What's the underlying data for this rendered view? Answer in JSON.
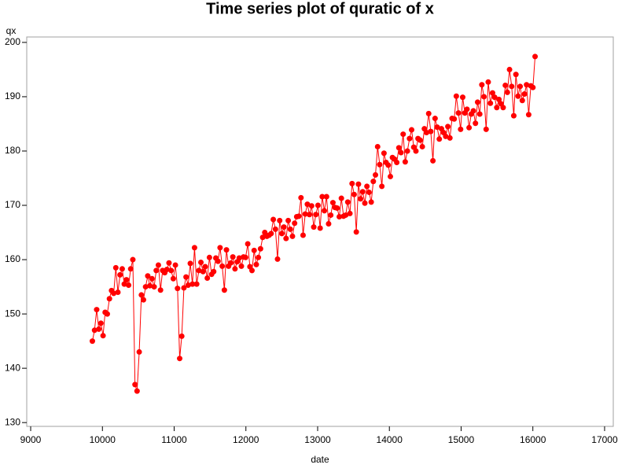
{
  "chart_data": {
    "type": "line",
    "title": "Time series plot of quratic of x",
    "x_label": "date",
    "y_label": "qx",
    "x": [
      9860,
      9890,
      9920,
      9949,
      9979,
      10009,
      10038,
      10068,
      10098,
      10127,
      10157,
      10187,
      10216,
      10246,
      10276,
      10305,
      10335,
      10365,
      10394,
      10424,
      10454,
      10483,
      10513,
      10543,
      10572,
      10602,
      10632,
      10661,
      10691,
      10721,
      10750,
      10780,
      10810,
      10839,
      10869,
      10899,
      10928,
      10958,
      10988,
      11017,
      11047,
      11077,
      11106,
      11136,
      11166,
      11195,
      11225,
      11255,
      11284,
      11314,
      11344,
      11373,
      11403,
      11433,
      11462,
      11492,
      11522,
      11551,
      11581,
      11611,
      11640,
      11670,
      11700,
      11729,
      11759,
      11789,
      11818,
      11848,
      11878,
      11907,
      11937,
      11967,
      11996,
      12026,
      12056,
      12085,
      12115,
      12145,
      12174,
      12204,
      12234,
      12263,
      12293,
      12323,
      12352,
      12382,
      12412,
      12441,
      12471,
      12501,
      12530,
      12560,
      12590,
      12619,
      12649,
      12679,
      12708,
      12738,
      12768,
      12797,
      12827,
      12857,
      12886,
      12916,
      12946,
      12975,
      13005,
      13035,
      13064,
      13094,
      13124,
      13153,
      13183,
      13213,
      13242,
      13272,
      13302,
      13331,
      13361,
      13391,
      13420,
      13450,
      13480,
      13509,
      13539,
      13569,
      13598,
      13628,
      13658,
      13687,
      13717,
      13747,
      13776,
      13806,
      13836,
      13865,
      13895,
      13925,
      13954,
      13984,
      14014,
      14043,
      14073,
      14103,
      14132,
      14162,
      14192,
      14221,
      14251,
      14281,
      14310,
      14340,
      14370,
      14399,
      14429,
      14459,
      14488,
      14518,
      14548,
      14577,
      14607,
      14637,
      14666,
      14696,
      14726,
      14755,
      14785,
      14815,
      14844,
      14874,
      14904,
      14933,
      14963,
      14993,
      15022,
      15052,
      15082,
      15111,
      15141,
      15171,
      15200,
      15230,
      15260,
      15289,
      15319,
      15349,
      15378,
      15408,
      15438,
      15467,
      15497,
      15527,
      15556,
      15586,
      15616,
      15645,
      15675,
      15705,
      15734,
      15764,
      15794,
      15823,
      15853,
      15883,
      15912,
      15942,
      15972,
      16001,
      16031
    ],
    "series": [
      {
        "name": "qx",
        "color": "#ff0000",
        "values": [
          145,
          147,
          150.8,
          147.2,
          148.3,
          146,
          150.3,
          150,
          152.8,
          154.3,
          153.8,
          158.5,
          154,
          157.2,
          158.3,
          155.5,
          156.3,
          155.3,
          158.3,
          160,
          137,
          135.8,
          143,
          153.5,
          152.6,
          155,
          157,
          155.2,
          156.5,
          155,
          158,
          159,
          154.4,
          158,
          157.6,
          158.2,
          159.4,
          158,
          156.5,
          159,
          154.7,
          141.8,
          145.9,
          154.8,
          156.8,
          155.3,
          159.3,
          155.5,
          162.2,
          155.5,
          158,
          159.5,
          157.8,
          158.7,
          156.6,
          160.4,
          157.3,
          157.8,
          160.3,
          159.7,
          162.2,
          158.8,
          154.4,
          161.8,
          158.8,
          159.4,
          160.5,
          158.3,
          159.6,
          160.3,
          158.8,
          160.5,
          160.4,
          162.9,
          158.7,
          158,
          161.7,
          159.1,
          160.4,
          162,
          164.1,
          165,
          164.3,
          164.5,
          164.8,
          167.4,
          165.6,
          160.1,
          167.2,
          164.8,
          166,
          163.9,
          167.2,
          165.6,
          164.3,
          166.7,
          167.9,
          168,
          171.4,
          164.5,
          168.4,
          170.2,
          168.3,
          169.9,
          166,
          168.3,
          170,
          165.8,
          171.6,
          169,
          171.6,
          166.6,
          168.2,
          170.5,
          169.6,
          169.5,
          167.9,
          171.3,
          168,
          168.2,
          170.6,
          168.5,
          174,
          172,
          165.1,
          173.9,
          171.2,
          172.5,
          170.4,
          173.5,
          172.4,
          170.6,
          174.4,
          175.6,
          180.8,
          177.5,
          173.5,
          179.6,
          177.9,
          177.4,
          175.3,
          178.8,
          178.5,
          177.9,
          180.6,
          179.7,
          183.1,
          178,
          180,
          182.3,
          183.9,
          180.7,
          180,
          182.3,
          182,
          180.8,
          184.1,
          183.4,
          186.9,
          183.6,
          178.2,
          186,
          184.4,
          182.2,
          184.1,
          183.4,
          182.7,
          184.5,
          182.4,
          186,
          185.9,
          190.1,
          187,
          184,
          189.9,
          187,
          187.7,
          184.3,
          186.8,
          187.4,
          185.1,
          189,
          186.8,
          192.2,
          190,
          184,
          192.7,
          188.8,
          190.7,
          189.9,
          188,
          189.5,
          188.7,
          188,
          192.1,
          190.8,
          195,
          191.9,
          186.5,
          194.1,
          190.1,
          191.9,
          189.3,
          190.5,
          192.2,
          186.7,
          192,
          191.7,
          197.4
        ]
      }
    ],
    "xlim": [
      8945,
      17121
    ],
    "xticks": [
      9000,
      10000,
      11000,
      12000,
      13000,
      14000,
      15000,
      16000,
      17000
    ],
    "ylim": [
      129.3,
      201
    ],
    "yticks": [
      130,
      140,
      150,
      160,
      170,
      180,
      190,
      200
    ]
  }
}
